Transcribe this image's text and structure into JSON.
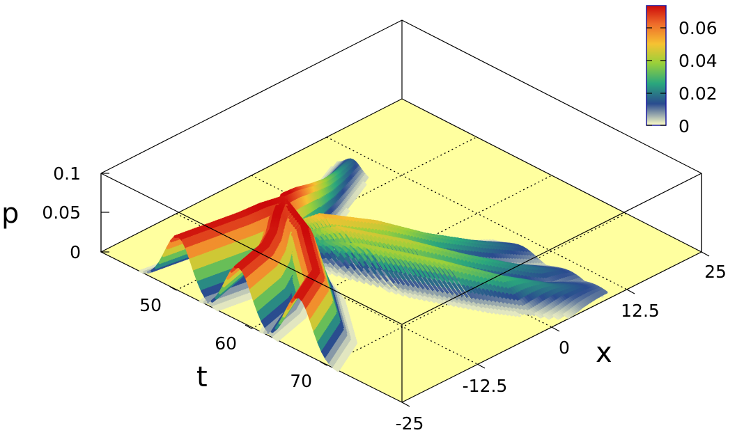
{
  "chart_data": {
    "type": "surface3d",
    "title": "",
    "xlabel": "x",
    "ylabel": "t",
    "zlabel": "p",
    "xlim": [
      -25,
      25
    ],
    "ylim": [
      40,
      80
    ],
    "zlim": [
      0,
      0.1
    ],
    "x_ticks": [
      "-25",
      "-12.5",
      "0",
      "12.5",
      "25"
    ],
    "t_ticks": [
      "50",
      "60",
      "70"
    ],
    "z_ticks": [
      "0",
      "0.05",
      "0.1"
    ],
    "colorbar": {
      "min": 0,
      "max": 0.07,
      "ticks": [
        "0",
        "0.02",
        "0.04",
        "0.06"
      ]
    },
    "colormap": [
      "#ffffc8",
      "#2a4b8f",
      "#2aa77d",
      "#9ad03a",
      "#f6c232",
      "#ee6a2a",
      "#cc0a0a"
    ],
    "floor_color": "#ffff9f",
    "colorbar_border": "#1a1aa0",
    "series": [
      {
        "t": [
          40,
          46,
          49,
          52,
          55
        ],
        "x": [
          -12,
          -11,
          -10.5,
          -10,
          -9.6
        ],
        "peak": [
          0.07,
          0.07,
          0.07,
          0.072,
          0.07
        ],
        "width": 2.2
      },
      {
        "t": [
          40,
          46,
          49,
          52,
          55
        ],
        "x": [
          -2,
          -3.5,
          -5.2,
          -7.5,
          -9.6
        ],
        "peak": [
          0.07,
          0.07,
          0.07,
          0.072,
          0.07
        ],
        "width": 2.2
      },
      {
        "t": [
          40,
          46,
          49,
          52,
          55
        ],
        "x": [
          8,
          5,
          1,
          -3,
          -9.6
        ],
        "peak": [
          0.07,
          0.07,
          0.07,
          0.072,
          0.07
        ],
        "width": 2.2
      },
      {
        "t": [
          55,
          58,
          62,
          66,
          70,
          74
        ],
        "x": [
          -9.6,
          -10.6,
          -12,
          -13.6,
          -15.4,
          -17.2
        ],
        "peak": [
          0.075,
          0.066,
          0.05,
          0.034,
          0.022,
          0.014
        ],
        "width": 1.2
      },
      {
        "t": [
          55,
          58,
          62,
          66,
          70,
          74
        ],
        "x": [
          -9.6,
          -6,
          -1,
          3.5,
          7.5,
          11
        ],
        "peak": [
          0.03,
          0.05,
          0.045,
          0.03,
          0.02,
          0.012
        ],
        "width": 2.4
      },
      {
        "t": [
          55,
          58,
          62,
          66,
          70,
          74
        ],
        "x": [
          -9.6,
          -3,
          4,
          10,
          15,
          19
        ],
        "peak": [
          0.02,
          0.045,
          0.04,
          0.028,
          0.018,
          0.011
        ],
        "width": 2.6
      },
      {
        "t": [
          55,
          58,
          62,
          66,
          70,
          74
        ],
        "x": [
          -9.6,
          1,
          10,
          16.5,
          21,
          23.5
        ],
        "peak": [
          0.015,
          0.038,
          0.036,
          0.025,
          0.016,
          0.01
        ],
        "width": 2.8
      }
    ]
  }
}
